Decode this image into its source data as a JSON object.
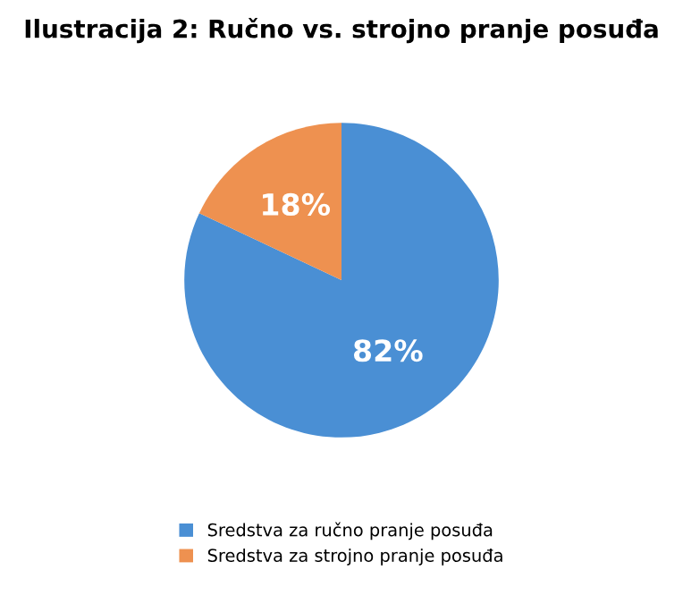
{
  "chart_data": {
    "type": "pie",
    "title": "Ilustracija 2: Ručno vs. strojno pranje posuđa",
    "categories": [
      "Sredstva za ručno pranje posuđa",
      "Sredstva za strojno pranje posuđa"
    ],
    "values": [
      82,
      18
    ],
    "colors": [
      "#4a8fd4",
      "#ee9150"
    ],
    "value_labels": [
      "82%",
      "18%"
    ],
    "legend": "bottom"
  }
}
